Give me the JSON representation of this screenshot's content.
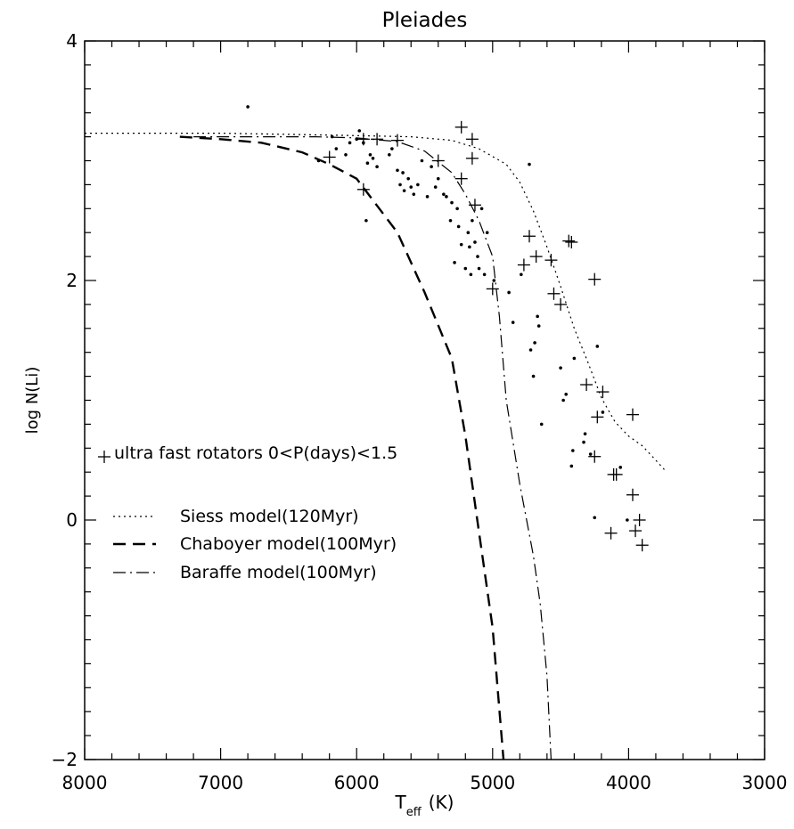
{
  "chart_data": {
    "type": "scatter",
    "title": "Pleiades",
    "xlabel_main": "T",
    "xlabel_sub": "eff",
    "xlabel_unit": "(K)",
    "ylabel": "log N(Li)",
    "xlim": [
      8000,
      3000
    ],
    "ylim": [
      -2,
      4
    ],
    "x_reversed": true,
    "xticks": [
      8000,
      7000,
      6000,
      5000,
      4000,
      3000
    ],
    "xtick_labels": [
      "8000",
      "7000",
      "6000",
      "5000",
      "4000",
      "3000"
    ],
    "yticks": [
      -2,
      0,
      2,
      4
    ],
    "ytick_labels": [
      "−2",
      "0",
      "2",
      "4"
    ],
    "legend_placement": "left-center",
    "series": [
      {
        "name": "ultra fast rotators 0<P(days)<1.5",
        "kind": "points",
        "marker": "plus",
        "points": [
          [
            6200,
            3.03
          ],
          [
            5950,
            2.76
          ],
          [
            5950,
            3.18
          ],
          [
            5850,
            3.18
          ],
          [
            5700,
            3.17
          ],
          [
            5400,
            3.0
          ],
          [
            5230,
            3.28
          ],
          [
            5230,
            2.85
          ],
          [
            5150,
            3.18
          ],
          [
            5150,
            3.02
          ],
          [
            5130,
            2.63
          ],
          [
            5000,
            1.93
          ],
          [
            4770,
            2.13
          ],
          [
            4730,
            2.37
          ],
          [
            4680,
            2.2
          ],
          [
            4570,
            2.17
          ],
          [
            4550,
            1.89
          ],
          [
            4500,
            1.8
          ],
          [
            4440,
            2.33
          ],
          [
            4420,
            2.32
          ],
          [
            4310,
            1.13
          ],
          [
            4250,
            2.01
          ],
          [
            4230,
            0.86
          ],
          [
            4250,
            0.53
          ],
          [
            4190,
            1.07
          ],
          [
            4130,
            -0.11
          ],
          [
            4110,
            0.38
          ],
          [
            4090,
            0.38
          ],
          [
            3970,
            0.88
          ],
          [
            3970,
            0.21
          ],
          [
            3950,
            -0.09
          ],
          [
            3920,
            0.0
          ],
          [
            3900,
            -0.21
          ]
        ]
      },
      {
        "name": "",
        "kind": "points",
        "marker": "dot",
        "points": [
          [
            6800,
            3.45
          ],
          [
            6280,
            3.0
          ],
          [
            6180,
            3.2
          ],
          [
            6150,
            3.1
          ],
          [
            6080,
            3.05
          ],
          [
            6050,
            3.15
          ],
          [
            6000,
            3.18
          ],
          [
            5980,
            3.25
          ],
          [
            5950,
            3.15
          ],
          [
            5930,
            2.5
          ],
          [
            5920,
            2.98
          ],
          [
            5900,
            3.05
          ],
          [
            5880,
            3.02
          ],
          [
            5850,
            2.95
          ],
          [
            5760,
            3.05
          ],
          [
            5740,
            3.1
          ],
          [
            5700,
            2.92
          ],
          [
            5680,
            2.8
          ],
          [
            5660,
            2.9
          ],
          [
            5650,
            2.75
          ],
          [
            5620,
            2.85
          ],
          [
            5600,
            2.78
          ],
          [
            5580,
            2.72
          ],
          [
            5550,
            2.8
          ],
          [
            5520,
            3.0
          ],
          [
            5480,
            2.7
          ],
          [
            5450,
            2.95
          ],
          [
            5420,
            2.78
          ],
          [
            5400,
            2.85
          ],
          [
            5360,
            2.72
          ],
          [
            5340,
            2.7
          ],
          [
            5310,
            2.5
          ],
          [
            5300,
            2.65
          ],
          [
            5280,
            2.15
          ],
          [
            5260,
            2.6
          ],
          [
            5250,
            2.45
          ],
          [
            5230,
            2.3
          ],
          [
            5200,
            2.1
          ],
          [
            5180,
            2.4
          ],
          [
            5170,
            2.28
          ],
          [
            5160,
            2.05
          ],
          [
            5150,
            2.5
          ],
          [
            5130,
            2.32
          ],
          [
            5110,
            2.2
          ],
          [
            5100,
            2.1
          ],
          [
            5080,
            2.6
          ],
          [
            5060,
            2.05
          ],
          [
            5040,
            2.4
          ],
          [
            4990,
            2.0
          ],
          [
            4880,
            1.9
          ],
          [
            4850,
            1.65
          ],
          [
            4790,
            2.05
          ],
          [
            4730,
            2.97
          ],
          [
            4720,
            1.42
          ],
          [
            4700,
            1.2
          ],
          [
            4690,
            1.48
          ],
          [
            4670,
            1.7
          ],
          [
            4660,
            1.62
          ],
          [
            4640,
            0.8
          ],
          [
            4500,
            1.27
          ],
          [
            4480,
            1.0
          ],
          [
            4460,
            1.05
          ],
          [
            4420,
            0.45
          ],
          [
            4410,
            0.58
          ],
          [
            4400,
            1.35
          ],
          [
            4330,
            0.65
          ],
          [
            4320,
            0.72
          ],
          [
            4280,
            0.55
          ],
          [
            4250,
            0.02
          ],
          [
            4230,
            1.45
          ],
          [
            4190,
            0.9
          ],
          [
            4060,
            0.44
          ],
          [
            4010,
            0.0
          ]
        ]
      },
      {
        "name": "Siess model(120Myr)",
        "kind": "line",
        "dash": "2,4",
        "width": 1.2,
        "points": [
          [
            8000,
            3.23
          ],
          [
            7500,
            3.23
          ],
          [
            7000,
            3.23
          ],
          [
            6500,
            3.22
          ],
          [
            6000,
            3.21
          ],
          [
            5600,
            3.2
          ],
          [
            5300,
            3.17
          ],
          [
            5100,
            3.1
          ],
          [
            4900,
            2.97
          ],
          [
            4800,
            2.82
          ],
          [
            4700,
            2.58
          ],
          [
            4600,
            2.28
          ],
          [
            4500,
            1.95
          ],
          [
            4400,
            1.6
          ],
          [
            4300,
            1.32
          ],
          [
            4200,
            1.02
          ],
          [
            4100,
            0.82
          ],
          [
            4000,
            0.7
          ],
          [
            3900,
            0.62
          ],
          [
            3800,
            0.5
          ],
          [
            3720,
            0.4
          ]
        ]
      },
      {
        "name": "Chaboyer model(100Myr)",
        "kind": "line",
        "dash": "14,8",
        "width": 2.4,
        "points": [
          [
            7300,
            3.2
          ],
          [
            7000,
            3.18
          ],
          [
            6700,
            3.15
          ],
          [
            6400,
            3.07
          ],
          [
            6200,
            2.97
          ],
          [
            6000,
            2.85
          ],
          [
            5900,
            2.7
          ],
          [
            5700,
            2.4
          ],
          [
            5500,
            1.9
          ],
          [
            5300,
            1.35
          ],
          [
            5200,
            0.7
          ],
          [
            5100,
            -0.1
          ],
          [
            5000,
            -0.9
          ],
          [
            4920,
            -2.0
          ]
        ]
      },
      {
        "name": "Baraffe model(100Myr)",
        "kind": "line",
        "dash": "14,5,2,5",
        "width": 1.2,
        "points": [
          [
            7200,
            3.2
          ],
          [
            6900,
            3.2
          ],
          [
            6600,
            3.2
          ],
          [
            6300,
            3.2
          ],
          [
            6000,
            3.19
          ],
          [
            5700,
            3.16
          ],
          [
            5500,
            3.08
          ],
          [
            5300,
            2.9
          ],
          [
            5200,
            2.72
          ],
          [
            5100,
            2.5
          ],
          [
            5000,
            2.2
          ],
          [
            4950,
            1.7
          ],
          [
            4900,
            1.0
          ],
          [
            4800,
            0.3
          ],
          [
            4700,
            -0.3
          ],
          [
            4650,
            -0.7
          ],
          [
            4600,
            -1.3
          ],
          [
            4570,
            -2.0
          ]
        ]
      }
    ]
  }
}
